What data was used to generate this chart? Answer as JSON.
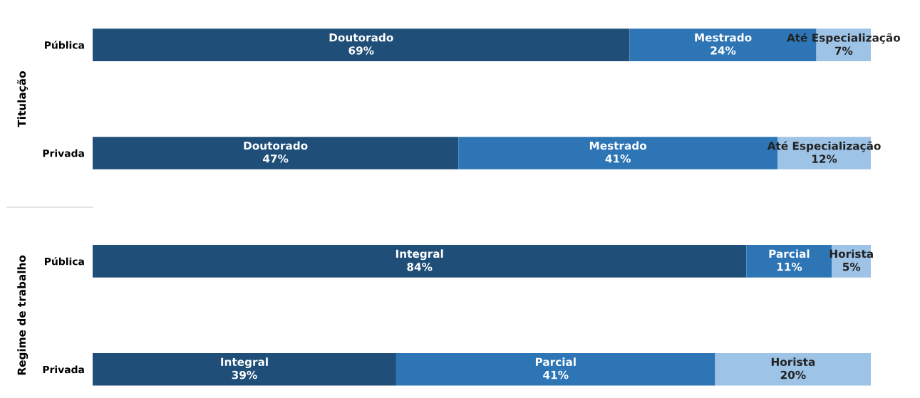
{
  "chart_data": {
    "type": "bar",
    "orientation": "horizontal",
    "stacked": true,
    "categories": [
      "Pública",
      "Privada",
      "Pública",
      "Privada"
    ],
    "xlim": [
      0,
      100
    ],
    "tick_labels": "y",
    "grid": false,
    "legend": false,
    "annotations": [
      "Titulação",
      "Regime de trabalho"
    ],
    "series": [
      {
        "color": "#1f4e79",
        "values": [
          69,
          47,
          84,
          39
        ],
        "value_labels": [
          "Doutorado\n69%",
          "Doutorado\n47%",
          "Integral\n84%",
          "Integral\n39%"
        ]
      },
      {
        "color": "#2e75b6",
        "values": [
          24,
          41,
          11,
          41
        ],
        "value_labels": [
          "Mestrado\n24%",
          "Mestrado\n41%",
          "Parcial\n11%",
          "Parcial\n41%"
        ]
      },
      {
        "color": "#9dc3e6",
        "values": [
          7,
          12,
          5,
          20
        ],
        "value_labels": [
          "Até Especialização\n7%",
          "Até Especialização\n12%",
          "Horista\n5%",
          "Horista\n20%"
        ]
      }
    ]
  }
}
